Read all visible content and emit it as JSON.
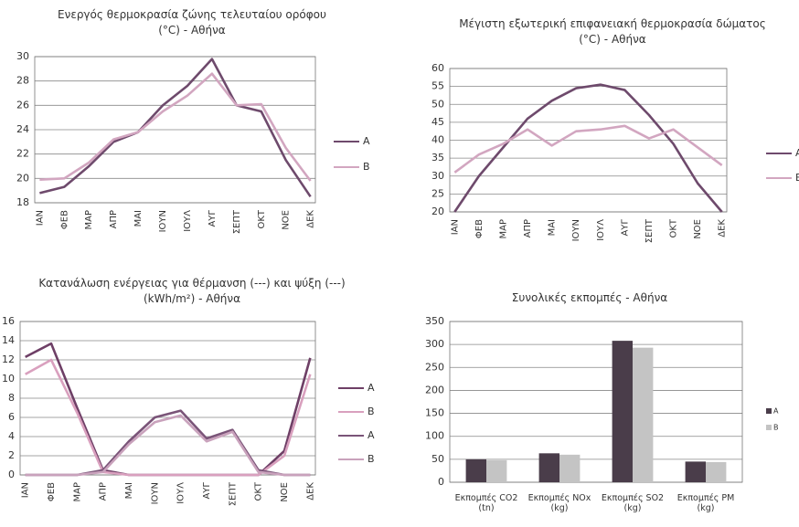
{
  "chart_data": [
    {
      "type": "line",
      "title": "Ενεργός θερμοκρασία ζώνης τελευταίου ορόφου (°C) - Αθήνα",
      "categories": [
        "ΙΑΝ",
        "ΦΕΒ",
        "ΜΑΡ",
        "ΑΠΡ",
        "ΜΑΙ",
        "ΙΟΥΝ",
        "ΙΟΥΛ",
        "ΑΥΓ",
        "ΣΕΠΤ",
        "ΟΚΤ",
        "ΝΟΕ",
        "ΔΕΚ"
      ],
      "series": [
        {
          "name": "A",
          "color": "#6e4a6c",
          "values": [
            18.8,
            19.3,
            21,
            23,
            23.8,
            26,
            27.6,
            29.8,
            26,
            25.5,
            21.5,
            18.5
          ]
        },
        {
          "name": "B",
          "color": "#d2a6c0",
          "values": [
            19.9,
            20,
            21.3,
            23.2,
            23.8,
            25.5,
            26.8,
            28.6,
            26,
            26.1,
            22.5,
            19.8
          ]
        }
      ],
      "ylim": [
        18,
        30
      ],
      "yticks": [
        18,
        20,
        22,
        24,
        26,
        28,
        30
      ],
      "grid": true
    },
    {
      "type": "line",
      "title": "Μέγιστη εξωτερική επιφανειακή θερμοκρασία δώματος (°C) - Αθήνα",
      "categories": [
        "ΙΑΝ",
        "ΦΕΒ",
        "ΜΑΡ",
        "ΑΠΡ",
        "ΜΑΙ",
        "ΙΟΥΝ",
        "ΙΟΥΛ",
        "ΑΥΓ",
        "ΣΕΠΤ",
        "ΟΚΤ",
        "ΝΟΕ",
        "ΔΕΚ"
      ],
      "series": [
        {
          "name": "A",
          "color": "#6e4a6c",
          "values": [
            20,
            30,
            38,
            46,
            51,
            54.5,
            55.5,
            54,
            47,
            39,
            28,
            20
          ]
        },
        {
          "name": "B",
          "color": "#d2a6c0",
          "values": [
            31,
            36,
            39,
            43,
            38.5,
            42.5,
            43,
            44,
            40.5,
            43,
            38,
            33
          ]
        }
      ],
      "ylim": [
        20,
        60
      ],
      "yticks": [
        20,
        25,
        30,
        35,
        40,
        45,
        50,
        55,
        60
      ],
      "grid": true
    },
    {
      "type": "line",
      "title": "Κατανάλωση ενέργειας για θέρμανση (---) και ψύξη (---)(kWh/m²) - Αθήνα",
      "categories": [
        "ΙΑΝ",
        "ΦΕΒ",
        "ΜΑΡ",
        "ΑΠΡ",
        "ΜΑΙ",
        "ΙΟΥΝ",
        "ΙΟΥΛ",
        "ΑΥΓ",
        "ΣΕΠΤ",
        "ΟΚΤ",
        "ΝΟΕ",
        "ΔΕΚ"
      ],
      "series": [
        {
          "name": "A",
          "color": "#6e3f66",
          "values": [
            12.3,
            13.7,
            7,
            0.5,
            0,
            0,
            0,
            0,
            0,
            0,
            2.5,
            12.2
          ]
        },
        {
          "name": "B",
          "color": "#d9a0be",
          "values": [
            10.5,
            12,
            6.5,
            0.3,
            0,
            0,
            0,
            0,
            0,
            0,
            2,
            10.5
          ]
        },
        {
          "name": "A",
          "color": "#7a5478",
          "values": [
            0,
            0,
            0,
            0.5,
            3.5,
            6,
            6.7,
            3.8,
            4.7,
            0.5,
            0,
            0
          ]
        },
        {
          "name": "B",
          "color": "#c9a2bc",
          "values": [
            0,
            0,
            0,
            0.3,
            3.2,
            5.5,
            6.2,
            3.5,
            4.5,
            0.3,
            0,
            0
          ]
        }
      ],
      "ylim": [
        0,
        16
      ],
      "yticks": [
        0,
        2,
        4,
        6,
        8,
        10,
        12,
        14,
        16
      ],
      "grid": true
    },
    {
      "type": "bar",
      "title": "Συνολικές εκπομπές - Αθήνα",
      "categories": [
        "Εκπομπές CO2 (tn)",
        "Εκπομπές NOx (kg)",
        "Εκπομπές SO2 (kg)",
        "Εκπομπές PM (kg)"
      ],
      "series": [
        {
          "name": "A",
          "color": "#4a3d4a",
          "values": [
            50,
            63,
            308,
            45
          ]
        },
        {
          "name": "B",
          "color": "#c4c4c4",
          "values": [
            48,
            60,
            293,
            44
          ]
        }
      ],
      "ylim": [
        0,
        350
      ],
      "yticks": [
        0,
        50,
        100,
        150,
        200,
        250,
        300,
        350
      ],
      "grid": true
    }
  ]
}
